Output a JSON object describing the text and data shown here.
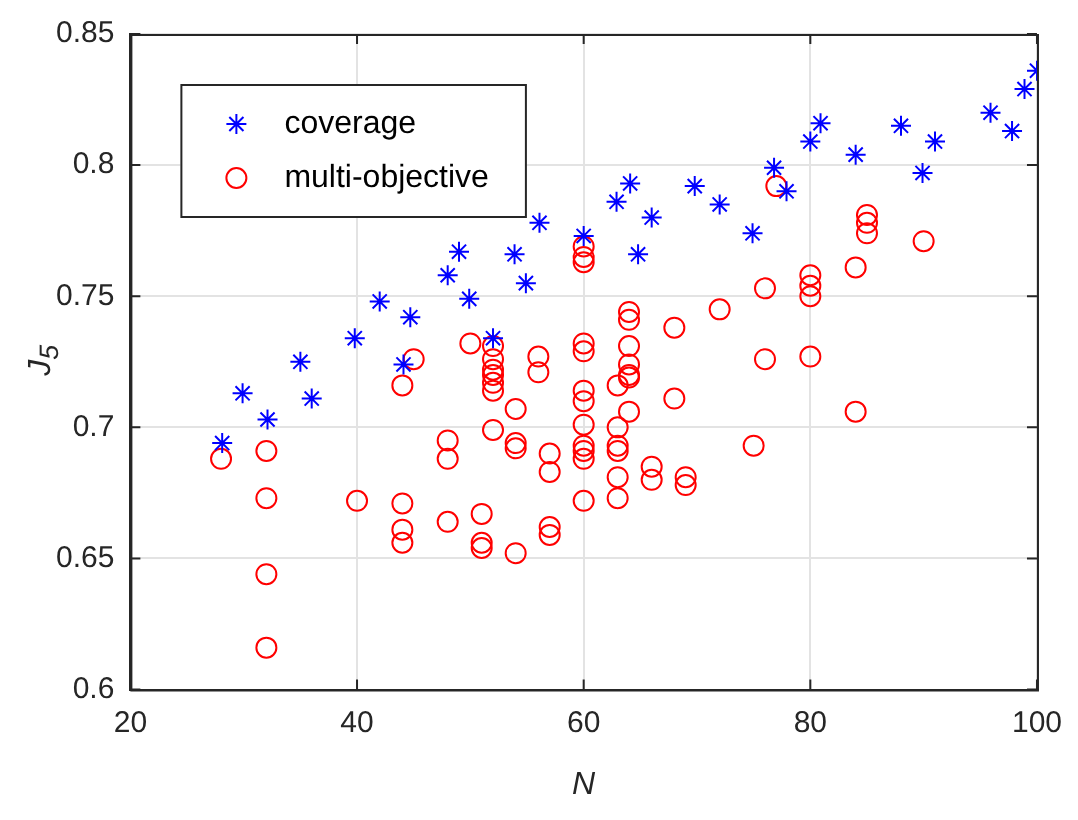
{
  "chart_data": {
    "type": "scatter",
    "xlabel": "N",
    "ylabel": "J$_{5}$",
    "xlim": [
      20,
      100
    ],
    "xticks": [
      20,
      40,
      60,
      80,
      100
    ],
    "ylim": [
      0.6,
      0.85
    ],
    "yticks": [
      0.6,
      0.65,
      0.7,
      0.75,
      0.8,
      0.85
    ],
    "grid": true,
    "legend": "top left",
    "series": [
      {
        "name": "coverage",
        "color": "#0000ff",
        "marker": "cross",
        "x": [
          28.1,
          29.9,
          32.1,
          35,
          36,
          39.8,
          42,
          44.1,
          44.7,
          48,
          49,
          49.9,
          52,
          53.9,
          54.9,
          56.1,
          60,
          62.9,
          64.1,
          64.8,
          66,
          69.8,
          72,
          74.9,
          76.8,
          77.9,
          80,
          80.9,
          84,
          88,
          89.9,
          91,
          95.9,
          97.8,
          98.9,
          100
        ],
        "values": [
          0.694,
          0.713,
          0.703,
          0.725,
          0.711,
          0.734,
          0.748,
          0.724,
          0.742,
          0.758,
          0.767,
          0.749,
          0.734,
          0.766,
          0.755,
          0.778,
          0.773,
          0.786,
          0.793,
          0.766,
          0.78,
          0.792,
          0.785,
          0.774,
          0.799,
          0.79,
          0.809,
          0.816,
          0.804,
          0.815,
          0.797,
          0.809,
          0.82,
          0.813,
          0.829,
          0.836
        ]
      },
      {
        "name": "multi-objective",
        "color": "#ff0000",
        "marker": "circle",
        "x": [
          28,
          32,
          32,
          32,
          32,
          40,
          44,
          44,
          44,
          44,
          45,
          48,
          48,
          48,
          50,
          51,
          51,
          51,
          52,
          52,
          52,
          52,
          52,
          52,
          52,
          54,
          54,
          54,
          54,
          56,
          56,
          57,
          57,
          57,
          57,
          60,
          60,
          60,
          60,
          60,
          60,
          60,
          60,
          60,
          60,
          60,
          60,
          63,
          63,
          63,
          63,
          63,
          63,
          64,
          64,
          64,
          64,
          64,
          64,
          64,
          66,
          66,
          68,
          68,
          69,
          69,
          72,
          75,
          76,
          76,
          77,
          80,
          80,
          80,
          80,
          84,
          84,
          85,
          85,
          85,
          90
        ],
        "values": [
          0.688,
          0.691,
          0.673,
          0.644,
          0.616,
          0.672,
          0.716,
          0.671,
          0.661,
          0.656,
          0.726,
          0.695,
          0.688,
          0.664,
          0.732,
          0.667,
          0.656,
          0.654,
          0.731,
          0.726,
          0.722,
          0.72,
          0.717,
          0.714,
          0.699,
          0.707,
          0.694,
          0.692,
          0.652,
          0.727,
          0.721,
          0.69,
          0.683,
          0.662,
          0.659,
          0.769,
          0.765,
          0.763,
          0.732,
          0.729,
          0.714,
          0.71,
          0.701,
          0.693,
          0.691,
          0.688,
          0.672,
          0.716,
          0.7,
          0.693,
          0.691,
          0.681,
          0.673,
          0.744,
          0.741,
          0.731,
          0.724,
          0.72,
          0.719,
          0.706,
          0.685,
          0.68,
          0.738,
          0.711,
          0.681,
          0.678,
          0.745,
          0.693,
          0.753,
          0.726,
          0.792,
          0.758,
          0.754,
          0.75,
          0.727,
          0.761,
          0.706,
          0.781,
          0.778,
          0.774,
          0.771
        ]
      }
    ]
  }
}
